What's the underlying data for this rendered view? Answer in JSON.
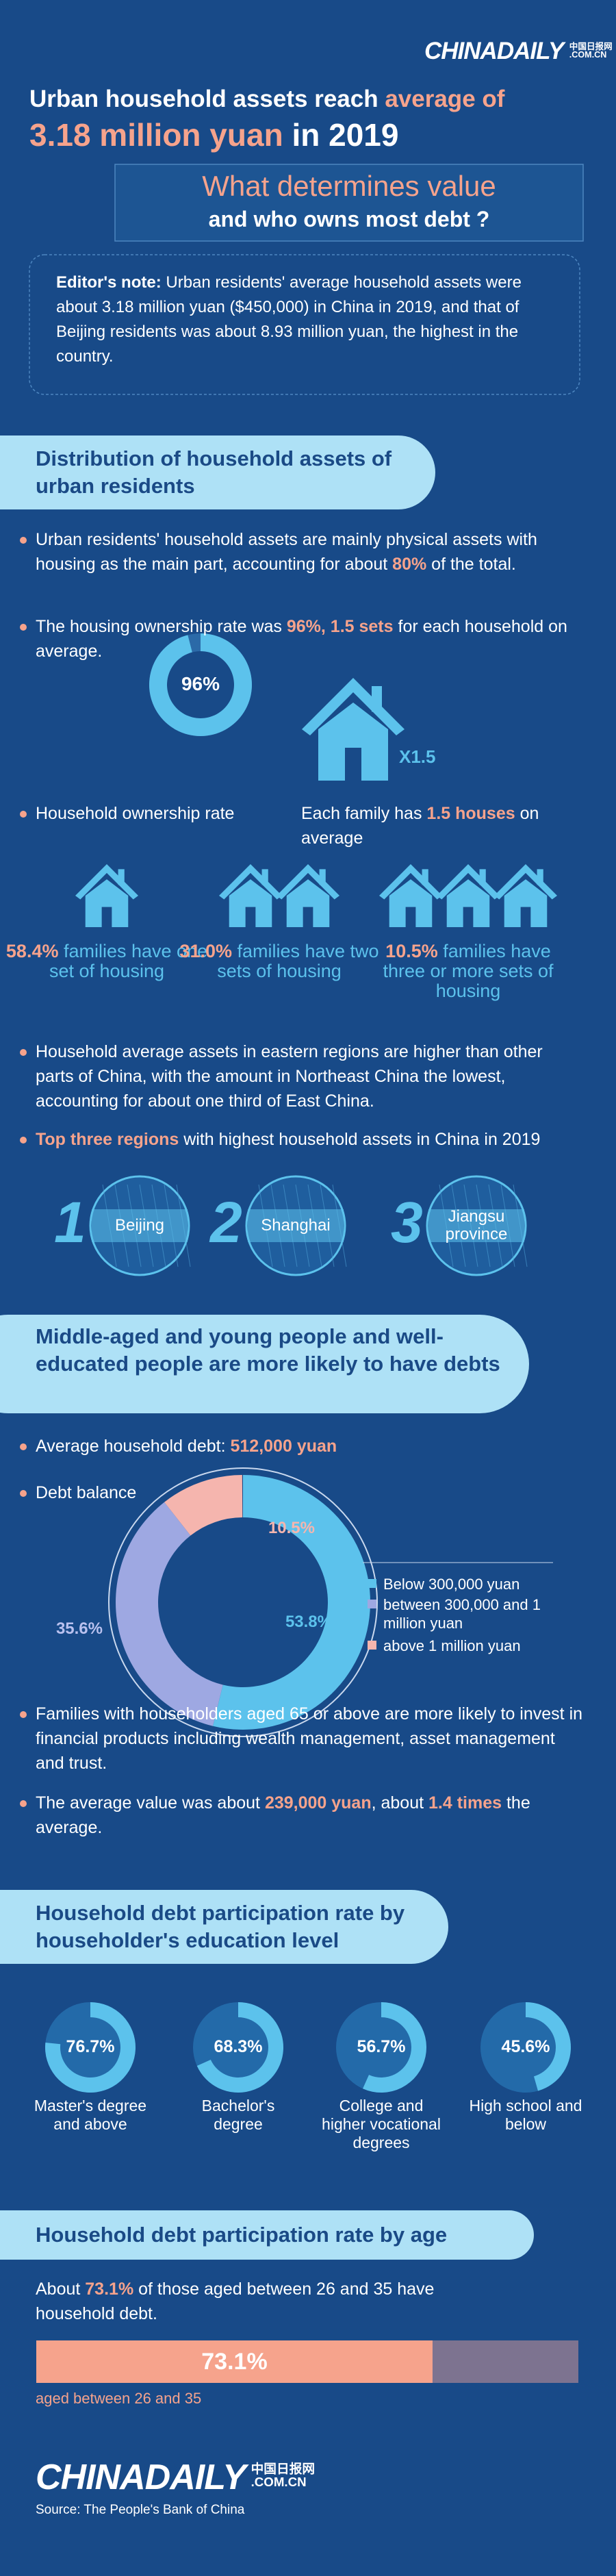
{
  "logo": {
    "name": "CHINADAILY",
    "cn": "中国日报网",
    "domain": ".COM.CN"
  },
  "title": [
    [
      "Urban household assets reach ",
      {
        "text": "average of"
      }
    ],
    [
      {
        "text": "3.18 million yuan"
      },
      " in 2019"
    ]
  ],
  "subtitle": {
    "line1": "What determines value",
    "line2": "and who owns most debt ?"
  },
  "editor_note": {
    "label": "Editor's note:",
    "text": " Urban residents' average household assets were about 3.18 million yuan ($450,000) in China in 2019, and that of Beijing residents was about 8.93 million yuan, the highest in the country."
  },
  "section1": {
    "heading": "Distribution of household assets of urban residents",
    "bullet1": [
      "Urban residents' household assets are mainly physical assets with housing as the main part, accounting for about ",
      {
        "text": "80%"
      },
      " of the total."
    ],
    "bullet2": [
      "The housing ownership rate was ",
      {
        "text": "96%, 1.5 sets"
      },
      " for each household on average."
    ],
    "ownership": {
      "value": 96,
      "label": "96%"
    },
    "multiplier": "X1.5",
    "caption1": "Household ownership rate",
    "caption2": [
      "Each family has ",
      {
        "text": "1.5 houses"
      },
      " on average"
    ],
    "house_groups": [
      {
        "pct": "58.4%",
        "text": " families have one set of housing"
      },
      {
        "pct": "31.0%",
        "text": " families have two sets of housing"
      },
      {
        "pct": "10.5%",
        "text": " families have three or more sets of housing"
      }
    ],
    "bullet3": "Household average assets in eastern regions are higher than other parts of China, with the amount in Northeast China the lowest, accounting for about one third of East China.",
    "bullet4": [
      {
        "text": "Top three regions"
      },
      " with highest household assets in China in 2019"
    ],
    "regions": [
      {
        "rank": 1,
        "name": "Beijing"
      },
      {
        "rank": 2,
        "name": "Shanghai"
      },
      {
        "rank": 3,
        "name": "Jiangsu province"
      }
    ]
  },
  "section2": {
    "heading": "Middle-aged and young people and well-educated people are more likely to have debts",
    "bullet1": [
      "Average household debt: ",
      {
        "text": "512,000 yuan"
      }
    ],
    "bullet2": "Debt balance",
    "debt_balance": [
      {
        "value": 53.8,
        "label": "53.8%",
        "name": "Below 300,000 yuan",
        "color": "#5cc2ec"
      },
      {
        "value": 35.6,
        "label": "35.6%",
        "name": "between 300,000 and 1 million yuan",
        "color": "#9ea8e2"
      },
      {
        "value": 10.5,
        "label": "10.5%",
        "name": "above 1 million yuan",
        "color": "#f5b5ae"
      }
    ],
    "bullet3": "Families with householders aged 65 or above are more likely to invest in financial products including wealth management, asset management and trust.",
    "bullet4": [
      "The average value was about ",
      {
        "text": "239,000 yuan"
      },
      ", about ",
      {
        "text": "1.4 times"
      },
      " the average."
    ]
  },
  "section3": {
    "heading": "Household debt participation rate by householder's education level",
    "education": [
      {
        "value": 76.7,
        "label": "76.7%",
        "name": "Master's degree and above"
      },
      {
        "value": 68.3,
        "label": "68.3%",
        "name": "Bachelor's degree"
      },
      {
        "value": 56.7,
        "label": "56.7%",
        "name": "College and higher vocational degrees"
      },
      {
        "value": 45.6,
        "label": "45.6%",
        "name": "High school and below"
      }
    ]
  },
  "section4": {
    "heading": "Household debt participation rate by age",
    "text": [
      "About ",
      {
        "text": "73.1%"
      },
      " of those aged between 26 and 35 have household debt."
    ],
    "bar": {
      "value": 73.1,
      "label": "73.1%",
      "name": "aged between 26 and 35"
    }
  },
  "source": "Source: The People's Bank of China"
}
